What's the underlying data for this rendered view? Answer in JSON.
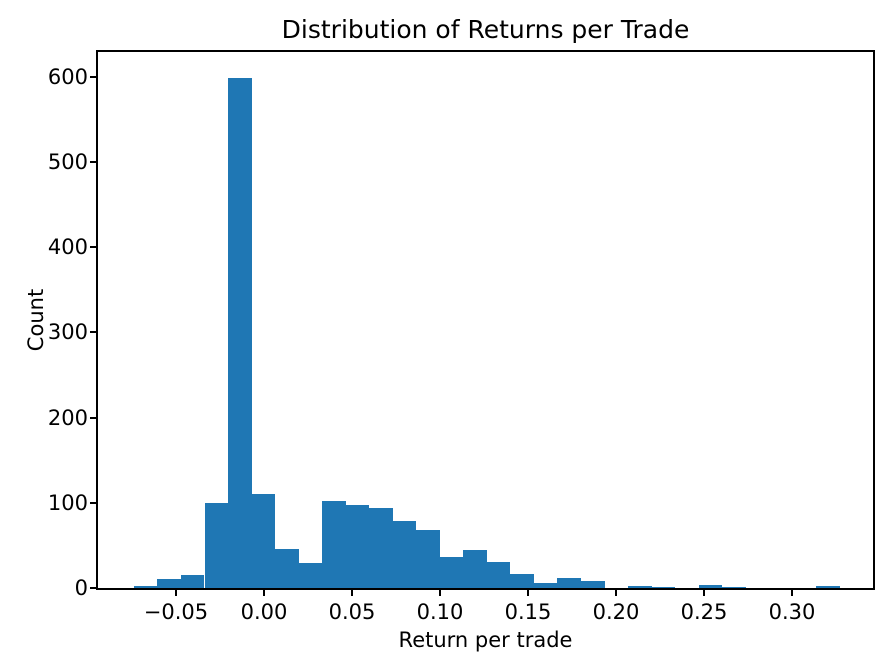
{
  "chart_data": {
    "type": "histogram",
    "title": "Distribution of Returns per Trade",
    "xlabel": "Return per trade",
    "ylabel": "Count",
    "bar_color": "#1f77b4",
    "text_color": "#000000",
    "grid": false,
    "legend": null,
    "bin_start": -0.0739,
    "bin_width": 0.013369,
    "counts": [
      2,
      11,
      15,
      100,
      599,
      110,
      46,
      29,
      102,
      98,
      94,
      79,
      68,
      36,
      45,
      30,
      16,
      6,
      12,
      8,
      0,
      2,
      1,
      0,
      3,
      1,
      0,
      0,
      0,
      2
    ],
    "xlim": [
      -0.0943,
      0.346
    ],
    "ylim": [
      0,
      629
    ],
    "x_ticks": [
      {
        "value": -0.05,
        "label": "−0.05"
      },
      {
        "value": 0.0,
        "label": "0.00"
      },
      {
        "value": 0.05,
        "label": "0.05"
      },
      {
        "value": 0.1,
        "label": "0.10"
      },
      {
        "value": 0.15,
        "label": "0.15"
      },
      {
        "value": 0.2,
        "label": "0.20"
      },
      {
        "value": 0.25,
        "label": "0.25"
      },
      {
        "value": 0.3,
        "label": "0.30"
      }
    ],
    "y_ticks": [
      {
        "value": 0,
        "label": "0"
      },
      {
        "value": 100,
        "label": "100"
      },
      {
        "value": 200,
        "label": "200"
      },
      {
        "value": 300,
        "label": "300"
      },
      {
        "value": 400,
        "label": "400"
      },
      {
        "value": 500,
        "label": "500"
      },
      {
        "value": 600,
        "label": "600"
      }
    ]
  }
}
